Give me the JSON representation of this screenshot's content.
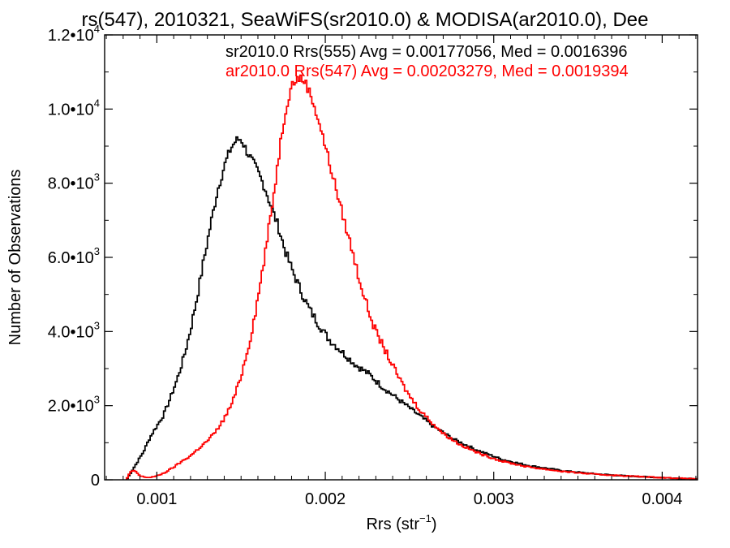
{
  "chart_data": {
    "type": "line",
    "title": "rs(547), 2010321, SeaWiFS(sr2010.0) & MODISA(ar2010.0), Dee",
    "xlabel": "Rrs (str",
    "xlabel_sup": "−1",
    "xlabel_close": ")",
    "ylabel": "Number of Observations",
    "xlim": [
      0.00069,
      0.00421
    ],
    "ylim": [
      0,
      12000
    ],
    "grid": false,
    "legend_position": "top-right",
    "x_ticks": [
      {
        "value": 0.001,
        "label": "0.001"
      },
      {
        "value": 0.002,
        "label": "0.002"
      },
      {
        "value": 0.003,
        "label": "0.003"
      },
      {
        "value": 0.004,
        "label": "0.004"
      }
    ],
    "y_ticks": [
      {
        "value": 0,
        "label": "0",
        "sup": ""
      },
      {
        "value": 2000,
        "label": "2.0•10",
        "sup": "3"
      },
      {
        "value": 4000,
        "label": "4.0•10",
        "sup": "3"
      },
      {
        "value": 6000,
        "label": "6.0•10",
        "sup": "3"
      },
      {
        "value": 8000,
        "label": "8.0•10",
        "sup": "3"
      },
      {
        "value": 10000,
        "label": "1.0•10",
        "sup": "4"
      },
      {
        "value": 12000,
        "label": "1.2•10",
        "sup": "4"
      }
    ],
    "series": [
      {
        "name": "sr2010.0 Rrs(555) Avg = 0.00177056, Med = 0.0016396",
        "color": "#000000",
        "points": [
          [
            0.00082,
            0
          ],
          [
            0.00084,
            150
          ],
          [
            0.00088,
            450
          ],
          [
            0.00092,
            750
          ],
          [
            0.00096,
            1150
          ],
          [
            0.001,
            1450
          ],
          [
            0.00104,
            1750
          ],
          [
            0.00108,
            2200
          ],
          [
            0.00112,
            2700
          ],
          [
            0.00116,
            3300
          ],
          [
            0.0012,
            4050
          ],
          [
            0.00124,
            4950
          ],
          [
            0.00128,
            5950
          ],
          [
            0.00132,
            6900
          ],
          [
            0.00136,
            7800
          ],
          [
            0.0014,
            8450
          ],
          [
            0.00144,
            8950
          ],
          [
            0.00147,
            9150
          ],
          [
            0.0015,
            9200
          ],
          [
            0.00153,
            8900
          ],
          [
            0.00156,
            8650
          ],
          [
            0.0016,
            8300
          ],
          [
            0.00164,
            7900
          ],
          [
            0.00168,
            7350
          ],
          [
            0.00172,
            6850
          ],
          [
            0.00176,
            6200
          ],
          [
            0.0018,
            5700
          ],
          [
            0.00185,
            5150
          ],
          [
            0.0019,
            4650
          ],
          [
            0.00196,
            4200
          ],
          [
            0.00202,
            3800
          ],
          [
            0.0021,
            3450
          ],
          [
            0.00218,
            3100
          ],
          [
            0.00226,
            2850
          ],
          [
            0.00234,
            2500
          ],
          [
            0.00244,
            2150
          ],
          [
            0.00254,
            1800
          ],
          [
            0.00264,
            1450
          ],
          [
            0.00276,
            1100
          ],
          [
            0.0029,
            800
          ],
          [
            0.00305,
            550
          ],
          [
            0.0032,
            390
          ],
          [
            0.0034,
            250
          ],
          [
            0.0036,
            160
          ],
          [
            0.0038,
            100
          ],
          [
            0.004,
            60
          ],
          [
            0.00421,
            20
          ]
        ]
      },
      {
        "name": "ar2010.0 Rrs(547) Avg = 0.00203279, Med = 0.0019394",
        "color": "#ff0000",
        "points": [
          [
            0.00082,
            0
          ],
          [
            0.00084,
            200
          ],
          [
            0.00087,
            250
          ],
          [
            0.0009,
            100
          ],
          [
            0.00095,
            60
          ],
          [
            0.001,
            100
          ],
          [
            0.00105,
            200
          ],
          [
            0.0011,
            340
          ],
          [
            0.00115,
            500
          ],
          [
            0.0012,
            650
          ],
          [
            0.00125,
            850
          ],
          [
            0.0013,
            1050
          ],
          [
            0.00135,
            1300
          ],
          [
            0.0014,
            1650
          ],
          [
            0.00145,
            2100
          ],
          [
            0.0015,
            2800
          ],
          [
            0.00155,
            3700
          ],
          [
            0.0016,
            4900
          ],
          [
            0.00165,
            6300
          ],
          [
            0.0017,
            7900
          ],
          [
            0.00174,
            9300
          ],
          [
            0.00177,
            10100
          ],
          [
            0.0018,
            10650
          ],
          [
            0.00184,
            10850
          ],
          [
            0.00188,
            10750
          ],
          [
            0.00192,
            10300
          ],
          [
            0.00196,
            9700
          ],
          [
            0.002,
            9000
          ],
          [
            0.00205,
            8100
          ],
          [
            0.0021,
            7200
          ],
          [
            0.00215,
            6350
          ],
          [
            0.0022,
            5450
          ],
          [
            0.00225,
            4650
          ],
          [
            0.0023,
            4000
          ],
          [
            0.00236,
            3450
          ],
          [
            0.00242,
            2900
          ],
          [
            0.00248,
            2400
          ],
          [
            0.00255,
            1950
          ],
          [
            0.00262,
            1600
          ],
          [
            0.0027,
            1250
          ],
          [
            0.0028,
            950
          ],
          [
            0.00292,
            700
          ],
          [
            0.00305,
            500
          ],
          [
            0.0032,
            350
          ],
          [
            0.0034,
            230
          ],
          [
            0.0036,
            150
          ],
          [
            0.0038,
            100
          ],
          [
            0.004,
            60
          ],
          [
            0.00421,
            20
          ]
        ]
      }
    ]
  }
}
